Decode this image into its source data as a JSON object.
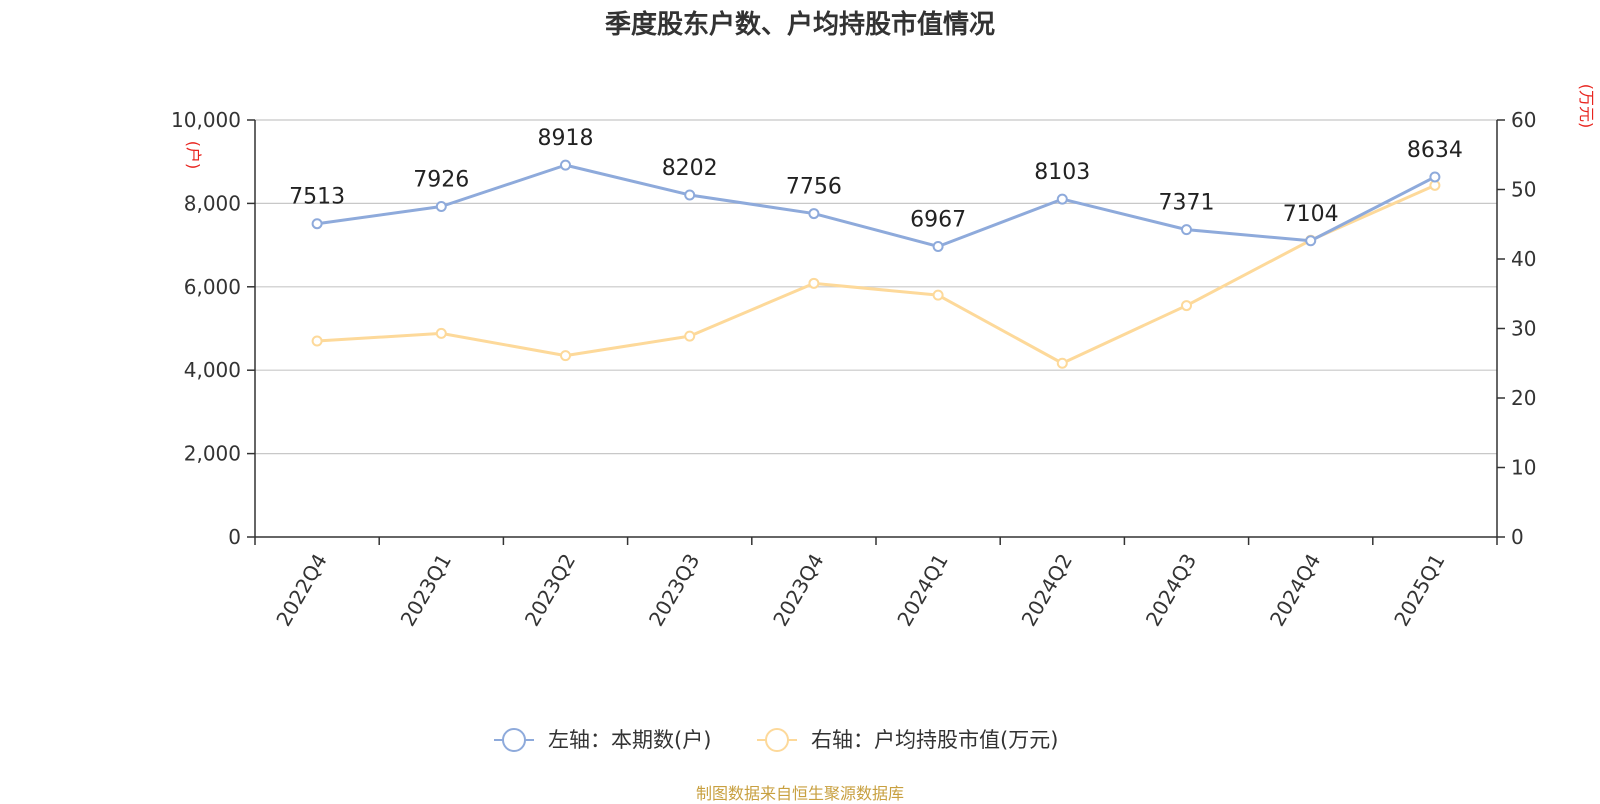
{
  "title": "季度股东户数、户均持股市值情况",
  "source": "制图数据来自恒生聚源数据库",
  "chart_data": {
    "type": "line",
    "title": "季度股东户数、户均持股市值情况",
    "categories": [
      "2022Q4",
      "2023Q1",
      "2023Q2",
      "2023Q3",
      "2023Q4",
      "2024Q1",
      "2024Q2",
      "2024Q3",
      "2024Q4",
      "2025Q1"
    ],
    "y_left": {
      "unit": "(户)",
      "ylim": [
        0,
        10000
      ],
      "ticks": [
        "0",
        "2,000",
        "4,000",
        "6,000",
        "8,000",
        "10,000"
      ]
    },
    "y_right": {
      "unit": "(万元)",
      "ylim": [
        0,
        60
      ],
      "ticks": [
        "0",
        "10",
        "20",
        "30",
        "40",
        "50",
        "60"
      ]
    },
    "grid": true,
    "legend_position": "bottom",
    "series": [
      {
        "name": "左轴：本期数(户)",
        "axis": "left",
        "color": "#8eaadb",
        "values": [
          7513,
          7926,
          8918,
          8202,
          7756,
          6967,
          8103,
          7371,
          7104,
          8634
        ],
        "labels": [
          "7513",
          "7926",
          "8918",
          "8202",
          "7756",
          "6967",
          "8103",
          "7371",
          "7104",
          "8634"
        ]
      },
      {
        "name": "右轴：户均持股市值(万元)",
        "axis": "right",
        "color": "#fdd99a",
        "values": [
          28.2,
          29.3,
          26.1,
          28.9,
          36.5,
          34.8,
          25.0,
          33.3,
          42.7,
          50.6
        ]
      }
    ]
  }
}
